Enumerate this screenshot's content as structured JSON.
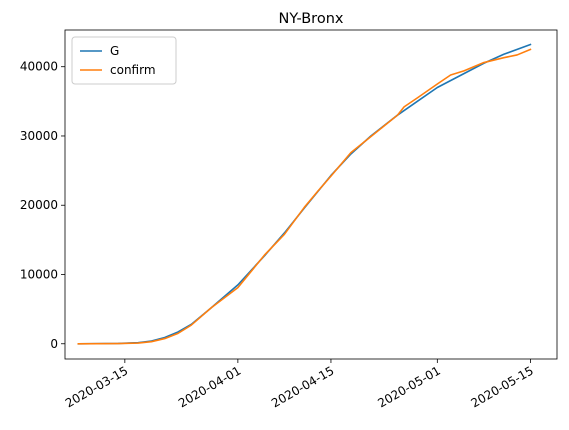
{
  "chart_data": {
    "type": "line",
    "title": "NY-Bronx",
    "xlabel": "",
    "ylabel": "",
    "x_axis_type": "date",
    "xlim": [
      "2020-03-06",
      "2020-05-19"
    ],
    "ylim": [
      -2200,
      45300
    ],
    "x_ticks": [
      "2020-03-15",
      "2020-04-01",
      "2020-04-15",
      "2020-05-01",
      "2020-05-15"
    ],
    "y_ticks": [
      0,
      10000,
      20000,
      30000,
      40000
    ],
    "grid": false,
    "legend_position": "upper left",
    "series": [
      {
        "name": "G",
        "color": "#1f77b4",
        "points": [
          [
            "2020-03-08",
            0
          ],
          [
            "2020-03-14",
            50
          ],
          [
            "2020-03-17",
            150
          ],
          [
            "2020-03-19",
            400
          ],
          [
            "2020-03-21",
            900
          ],
          [
            "2020-03-23",
            1700
          ],
          [
            "2020-03-25",
            2800
          ],
          [
            "2020-03-28",
            5200
          ],
          [
            "2020-04-01",
            8500
          ],
          [
            "2020-04-05",
            12700
          ],
          [
            "2020-04-08",
            16000
          ],
          [
            "2020-04-11",
            19600
          ],
          [
            "2020-04-15",
            24300
          ],
          [
            "2020-04-18",
            27400
          ],
          [
            "2020-04-21",
            30000
          ],
          [
            "2020-04-25",
            33000
          ],
          [
            "2020-04-28",
            35000
          ],
          [
            "2020-05-01",
            37000
          ],
          [
            "2020-05-05",
            39000
          ],
          [
            "2020-05-08",
            40500
          ],
          [
            "2020-05-11",
            41800
          ],
          [
            "2020-05-15",
            43200
          ]
        ]
      },
      {
        "name": "confirm",
        "color": "#ff7f0e",
        "points": [
          [
            "2020-03-08",
            0
          ],
          [
            "2020-03-14",
            30
          ],
          [
            "2020-03-17",
            100
          ],
          [
            "2020-03-19",
            300
          ],
          [
            "2020-03-21",
            750
          ],
          [
            "2020-03-23",
            1500
          ],
          [
            "2020-03-25",
            2700
          ],
          [
            "2020-03-28",
            5200
          ],
          [
            "2020-04-01",
            8100
          ],
          [
            "2020-04-05",
            12800
          ],
          [
            "2020-04-08",
            15800
          ],
          [
            "2020-04-11",
            19700
          ],
          [
            "2020-04-13",
            22000
          ],
          [
            "2020-04-15",
            24200
          ],
          [
            "2020-04-18",
            27600
          ],
          [
            "2020-04-21",
            29900
          ],
          [
            "2020-04-25",
            33000
          ],
          [
            "2020-04-26",
            34200
          ],
          [
            "2020-04-28",
            35500
          ],
          [
            "2020-05-01",
            37500
          ],
          [
            "2020-05-03",
            38800
          ],
          [
            "2020-05-05",
            39400
          ],
          [
            "2020-05-08",
            40600
          ],
          [
            "2020-05-11",
            41300
          ],
          [
            "2020-05-13",
            41700
          ],
          [
            "2020-05-15",
            42500
          ]
        ]
      }
    ]
  }
}
